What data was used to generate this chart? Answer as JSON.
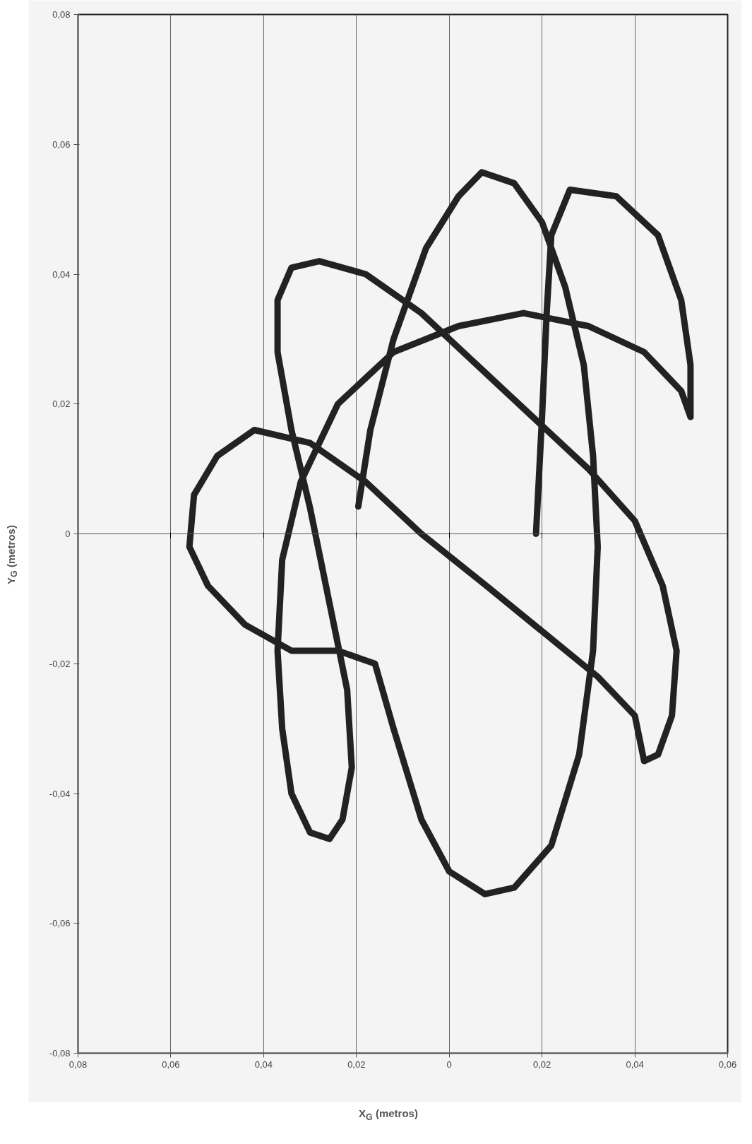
{
  "chart_data": {
    "type": "line",
    "xlabel": "X$_{G}$ (metros)",
    "ylabel": "Y$_{G}$ (metros)",
    "xlim": [
      -0.08,
      0.06
    ],
    "ylim": [
      -0.08,
      0.08
    ],
    "xticks": [
      {
        "value": -0.08,
        "label": "0,08"
      },
      {
        "value": -0.06,
        "label": "0,06"
      },
      {
        "value": -0.04,
        "label": "0,04"
      },
      {
        "value": -0.02,
        "label": "0,02"
      },
      {
        "value": 0,
        "label": "0"
      },
      {
        "value": 0.02,
        "label": "0,02"
      },
      {
        "value": 0.04,
        "label": "0,04"
      },
      {
        "value": 0.06,
        "label": "0,06"
      }
    ],
    "yticks": [
      {
        "value": -0.08,
        "label": "-0,08"
      },
      {
        "value": -0.06,
        "label": "-0,06"
      },
      {
        "value": -0.04,
        "label": "-0,04"
      },
      {
        "value": -0.02,
        "label": "-0,02"
      },
      {
        "value": 0,
        "label": "0"
      },
      {
        "value": 0.02,
        "label": "0,02"
      },
      {
        "value": 0.04,
        "label": "0,04"
      },
      {
        "value": 0.06,
        "label": "0,06"
      },
      {
        "value": 0.08,
        "label": "0,08"
      }
    ],
    "grid": "x",
    "line_style": "solid",
    "series": [
      {
        "color": "#222222",
        "x": [
          -0.0196,
          -0.017,
          -0.012,
          -0.005,
          0.002,
          0.007,
          0.014,
          0.02,
          0.025,
          0.029,
          0.031,
          0.032,
          0.031,
          0.028,
          0.022,
          0.014,
          0.0077,
          0.0,
          -0.006,
          -0.012,
          -0.016,
          -0.024,
          -0.034,
          -0.044,
          -0.052,
          -0.056,
          -0.055,
          -0.05,
          -0.042,
          -0.03,
          -0.018,
          -0.006,
          0.008,
          0.02,
          0.032,
          0.04,
          0.042,
          0.045,
          0.048,
          0.049,
          0.046,
          0.04,
          0.03,
          0.018,
          0.006,
          -0.006,
          -0.018,
          -0.028,
          -0.034,
          -0.037,
          -0.037,
          -0.034,
          -0.03,
          -0.026,
          -0.022,
          -0.021,
          -0.023,
          -0.0258,
          -0.03,
          -0.034,
          -0.036,
          -0.037,
          -0.036,
          -0.032,
          -0.024,
          -0.012,
          0.002,
          0.016,
          0.03,
          0.042,
          0.05,
          0.052,
          0.052,
          0.05,
          0.045,
          0.036,
          0.026,
          0.022,
          0.021,
          0.02,
          0.0187
        ],
        "values": [
          0.0042,
          0.016,
          0.03,
          0.044,
          0.052,
          0.0557,
          0.054,
          0.048,
          0.038,
          0.026,
          0.012,
          -0.002,
          -0.018,
          -0.034,
          -0.048,
          -0.0545,
          -0.0555,
          -0.052,
          -0.044,
          -0.03,
          -0.02,
          -0.018,
          -0.018,
          -0.014,
          -0.008,
          -0.002,
          0.006,
          0.012,
          0.016,
          0.014,
          0.008,
          0.0,
          -0.008,
          -0.015,
          -0.022,
          -0.028,
          -0.035,
          -0.034,
          -0.028,
          -0.018,
          -0.008,
          0.002,
          0.01,
          0.018,
          0.026,
          0.034,
          0.04,
          0.042,
          0.041,
          0.036,
          0.028,
          0.016,
          0.004,
          -0.01,
          -0.024,
          -0.036,
          -0.044,
          -0.047,
          -0.046,
          -0.04,
          -0.03,
          -0.018,
          -0.004,
          0.008,
          0.02,
          0.028,
          0.032,
          0.034,
          0.032,
          0.028,
          0.022,
          0.018,
          0.026,
          0.036,
          0.046,
          0.052,
          0.053,
          0.046,
          0.034,
          0.018,
          0.0
        ]
      }
    ]
  }
}
